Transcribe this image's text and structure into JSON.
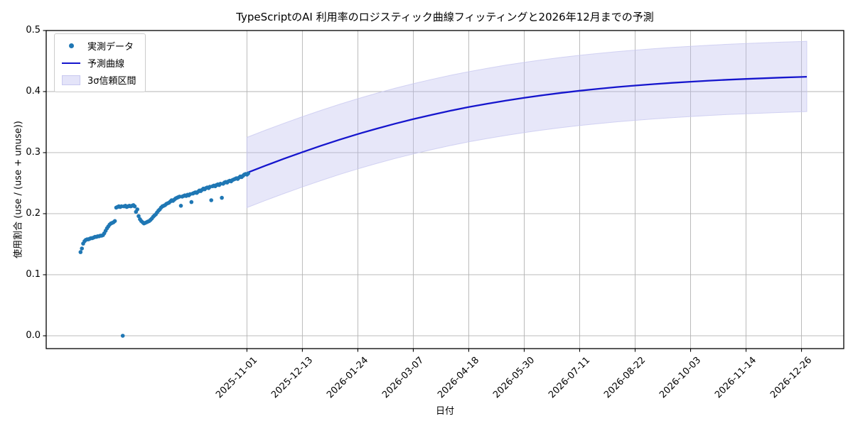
{
  "chart_data": {
    "type": "line",
    "title": "TypeScriptのAI 利用率のロジスティック曲線フィッティングと2026年12月までの予測",
    "xlabel": "日付",
    "ylabel": "使用割合 (use / (use + unuse))",
    "grid": true,
    "legend_position": "upper left",
    "xlim": [
      "2025-06-02",
      "2027-01-27"
    ],
    "ylim": [
      -0.021,
      0.5
    ],
    "y_ticks": [
      {
        "label": "0.0",
        "value": 0.0
      },
      {
        "label": "0.1",
        "value": 0.1
      },
      {
        "label": "0.2",
        "value": 0.2
      },
      {
        "label": "0.3",
        "value": 0.3
      },
      {
        "label": "0.4",
        "value": 0.4
      },
      {
        "label": "0.5",
        "value": 0.5
      }
    ],
    "x_ticks": [
      "2025-11-01",
      "2025-12-13",
      "2026-01-24",
      "2026-03-07",
      "2026-04-18",
      "2026-05-30",
      "2026-07-11",
      "2026-08-22",
      "2026-10-03",
      "2026-11-14",
      "2026-12-26"
    ],
    "legend": [
      {
        "label": "実測データ",
        "kind": "dot"
      },
      {
        "label": "予測曲線",
        "kind": "line"
      },
      {
        "label": "3σ信頼区間",
        "kind": "band"
      }
    ],
    "colors": {
      "observed": "#1f77b4",
      "forecast_line": "#1515cd",
      "band_fill": "#b9b9ee",
      "band_edge": "#c9c9f0",
      "grid": "#b3b3b3",
      "spine": "#000000",
      "background": "#ffffff"
    },
    "observed": {
      "label": "実測データ",
      "start_date": "2025-06-28",
      "interval": "daily",
      "values": [
        0.137,
        0.143,
        0.151,
        0.155,
        0.157,
        0.158,
        0.158,
        0.159,
        0.16,
        0.16,
        0.161,
        0.162,
        0.162,
        0.163,
        0.163,
        0.164,
        0.164,
        0.165,
        0.168,
        0.172,
        0.176,
        0.179,
        0.182,
        0.184,
        0.185,
        0.186,
        0.188,
        0.21,
        0.211,
        0.212,
        0.211,
        0.212,
        0.0,
        0.212,
        0.213,
        0.211,
        0.212,
        0.213,
        0.212,
        0.213,
        0.214,
        0.212,
        0.203,
        0.207,
        0.196,
        0.191,
        0.188,
        0.186,
        0.184,
        0.185,
        0.186,
        0.187,
        0.188,
        0.19,
        0.192,
        0.195,
        0.197,
        0.199,
        0.202,
        0.205,
        0.207,
        0.21,
        0.212,
        0.213,
        0.214,
        0.216,
        0.217,
        0.218,
        0.22,
        0.222,
        0.221,
        0.223,
        0.225,
        0.226,
        0.227,
        0.228,
        0.213,
        0.228,
        0.229,
        0.23,
        0.229,
        0.231,
        0.23,
        0.232,
        0.219,
        0.233,
        0.234,
        0.235,
        0.234,
        0.236,
        0.238,
        0.237,
        0.239,
        0.241,
        0.24,
        0.242,
        0.243,
        0.242,
        0.244,
        0.222,
        0.245,
        0.246,
        0.245,
        0.247,
        0.248,
        0.247,
        0.249,
        0.226,
        0.249,
        0.251,
        0.252,
        0.251,
        0.253,
        0.254,
        0.253,
        0.255,
        0.256,
        0.257,
        0.258,
        0.257,
        0.259,
        0.261,
        0.26,
        0.262,
        0.264,
        0.265,
        0.264,
        0.266
      ]
    },
    "forecast": {
      "label": "予測曲線",
      "band_label": "3σ信頼区間",
      "dates": [
        "2025-11-01",
        "2025-11-15",
        "2025-11-29",
        "2025-12-13",
        "2025-12-27",
        "2026-01-10",
        "2026-01-24",
        "2026-02-07",
        "2026-02-21",
        "2026-03-07",
        "2026-03-21",
        "2026-04-04",
        "2026-04-18",
        "2026-05-02",
        "2026-05-16",
        "2026-05-30",
        "2026-06-13",
        "2026-06-27",
        "2026-07-11",
        "2026-07-25",
        "2026-08-08",
        "2026-08-22",
        "2026-09-05",
        "2026-09-19",
        "2026-10-03",
        "2026-10-17",
        "2026-10-31",
        "2026-11-14",
        "2026-11-28",
        "2026-12-12",
        "2026-12-26",
        "2026-12-30"
      ],
      "mean": [
        0.267,
        0.2787,
        0.29,
        0.3008,
        0.3112,
        0.3211,
        0.3304,
        0.3391,
        0.3473,
        0.3549,
        0.362,
        0.3686,
        0.3746,
        0.3801,
        0.3852,
        0.3898,
        0.3941,
        0.3979,
        0.4014,
        0.4045,
        0.4074,
        0.4099,
        0.4122,
        0.4143,
        0.4162,
        0.4179,
        0.4194,
        0.4207,
        0.4219,
        0.423,
        0.424,
        0.4243
      ],
      "upper": [
        0.325,
        0.3367,
        0.348,
        0.3588,
        0.3692,
        0.3791,
        0.3884,
        0.3971,
        0.4053,
        0.4129,
        0.42,
        0.4266,
        0.4326,
        0.4381,
        0.4432,
        0.4478,
        0.4521,
        0.4559,
        0.4594,
        0.4625,
        0.4654,
        0.4679,
        0.4702,
        0.4723,
        0.4742,
        0.4759,
        0.4774,
        0.4787,
        0.4799,
        0.481,
        0.482,
        0.4823
      ],
      "lower": [
        0.21,
        0.2217,
        0.233,
        0.2438,
        0.2542,
        0.2641,
        0.2734,
        0.2821,
        0.2903,
        0.2979,
        0.305,
        0.3116,
        0.3176,
        0.3231,
        0.3282,
        0.3328,
        0.3371,
        0.3409,
        0.3444,
        0.3475,
        0.3504,
        0.3529,
        0.3552,
        0.3573,
        0.3592,
        0.3609,
        0.3624,
        0.3637,
        0.3649,
        0.366,
        0.367,
        0.3673
      ]
    }
  }
}
